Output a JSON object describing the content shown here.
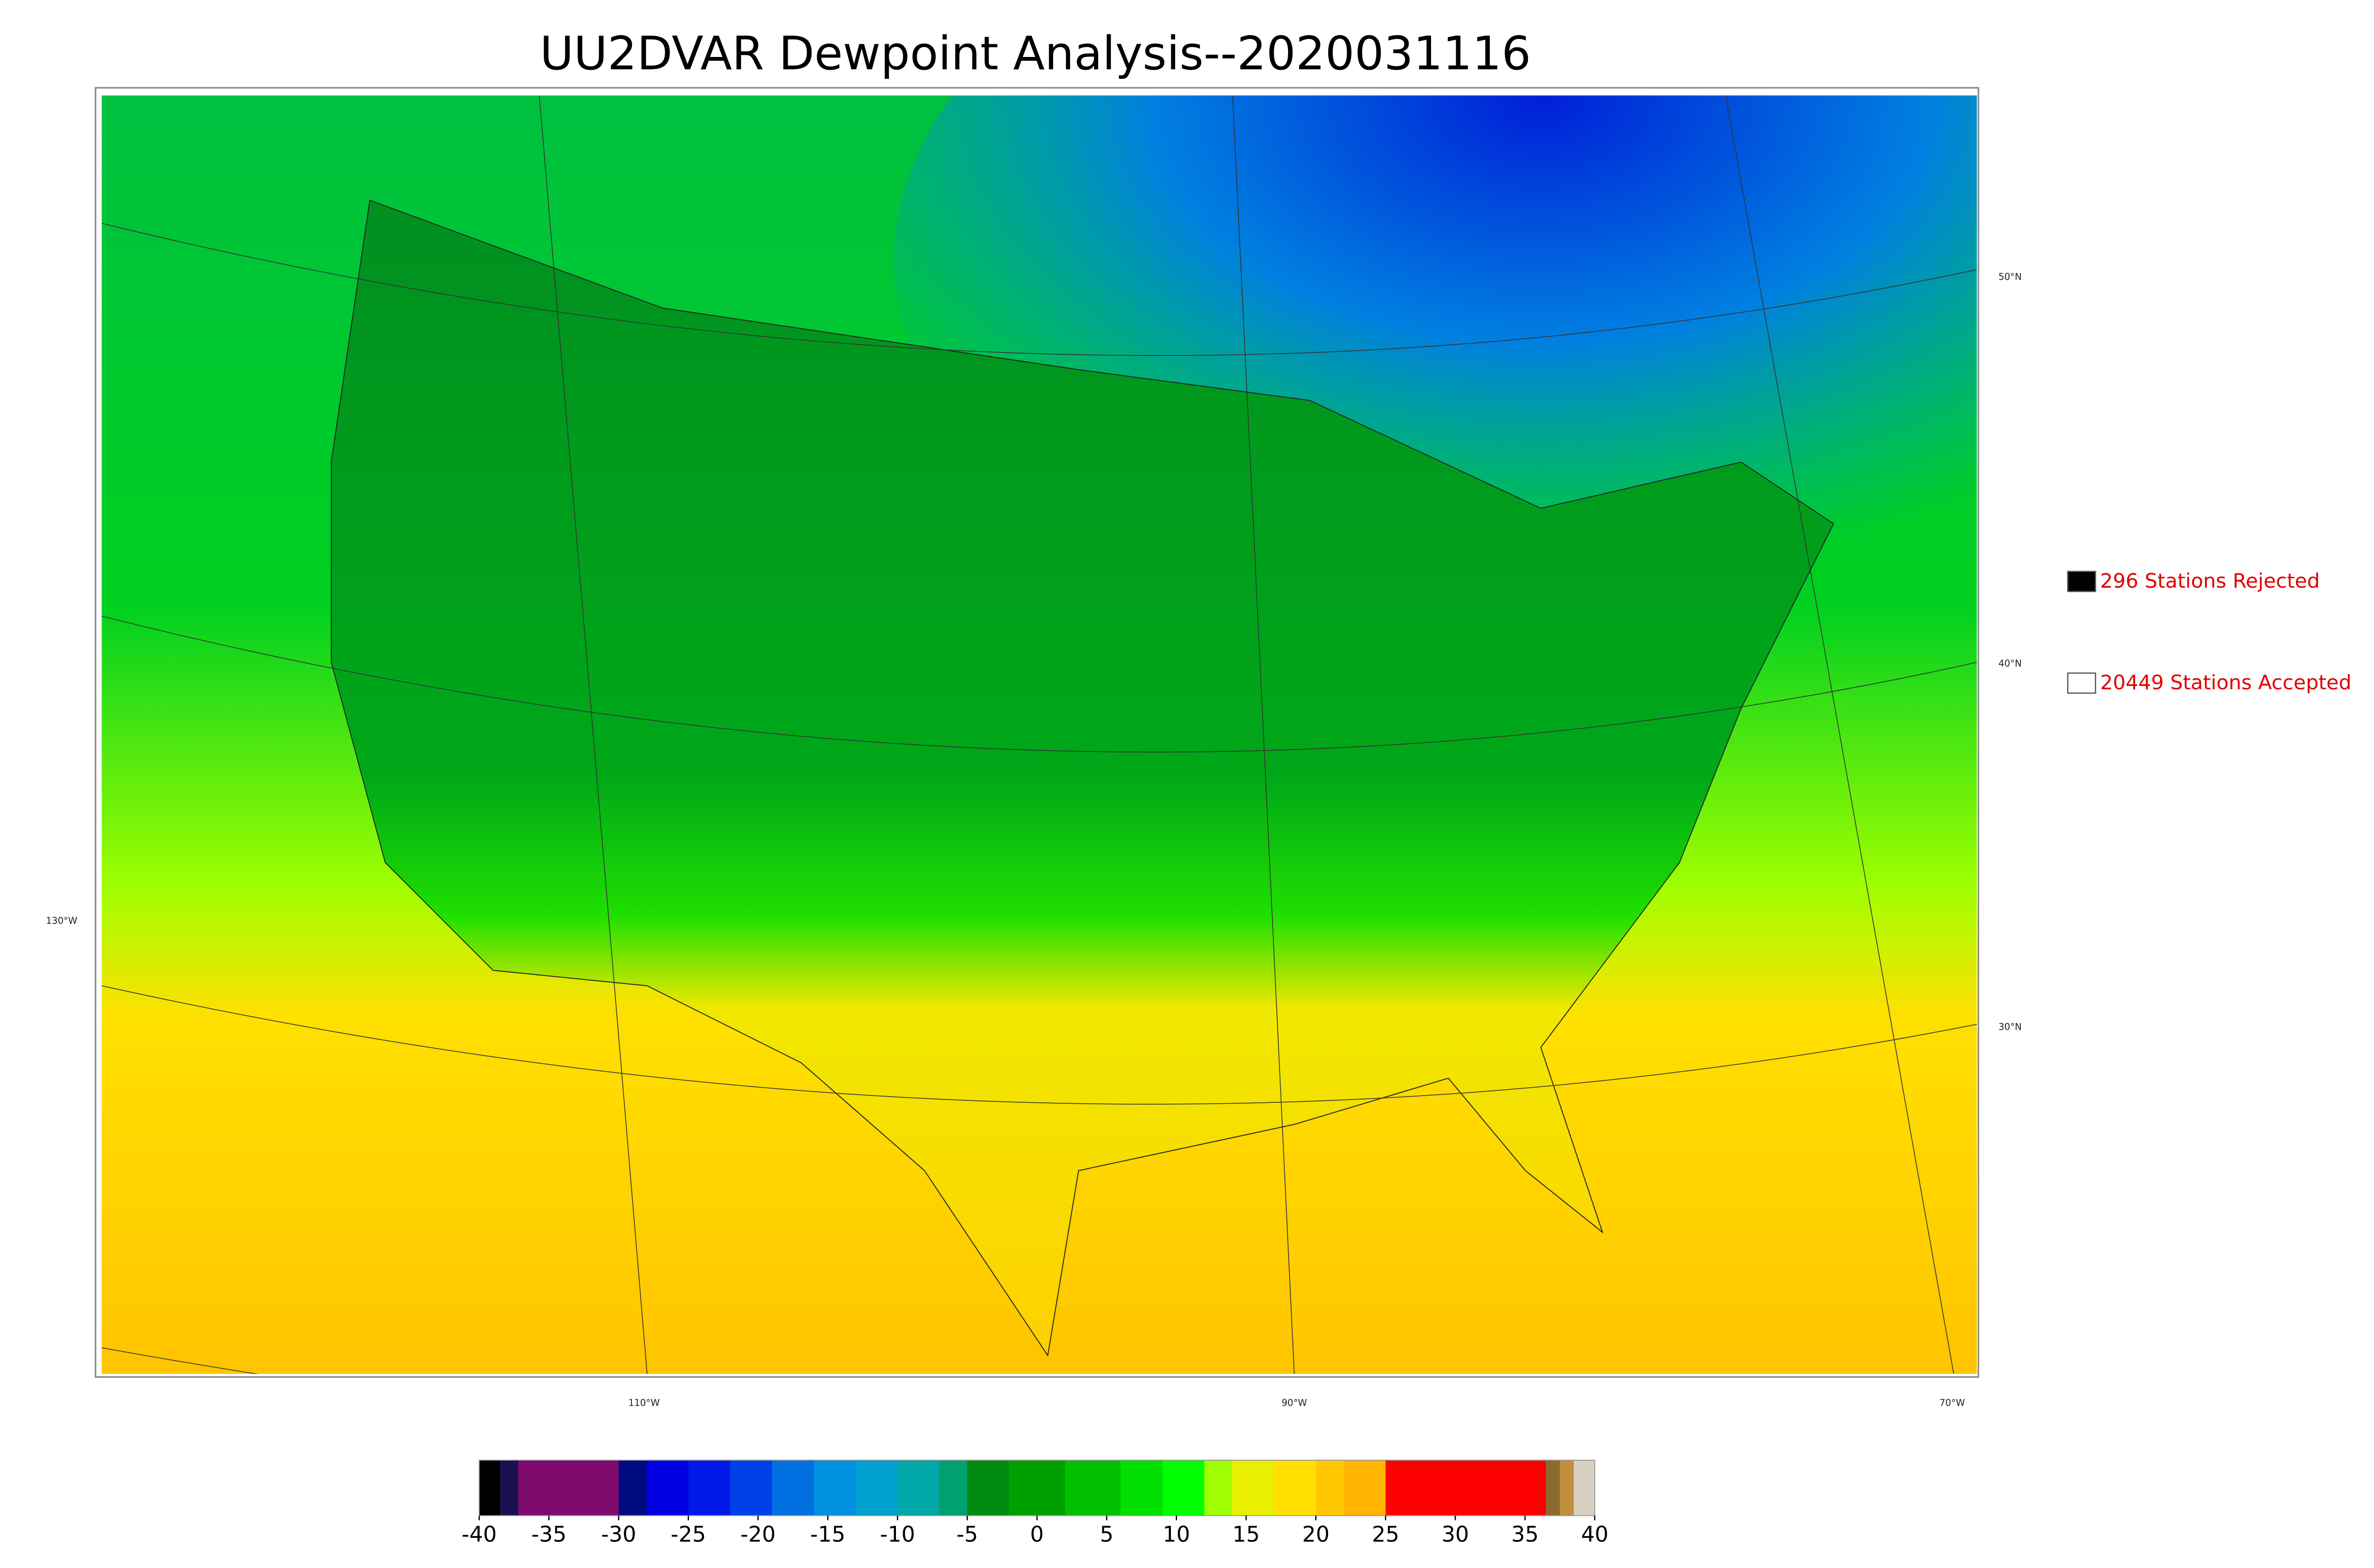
{
  "title": "UU2DVAR Dewpoint Analysis--2020031116",
  "legend": [
    {
      "label": "296 Stations Rejected",
      "color": "#000000"
    },
    {
      "label": "20449 Stations Accepted",
      "color": "#ffffff"
    }
  ],
  "lat_labels": [
    "50°N",
    "40°N",
    "30°N"
  ],
  "lon_labels": [
    "130°W",
    "110°W",
    "90°W",
    "70°W"
  ],
  "colorbar": {
    "range": [
      -40,
      40
    ],
    "ticks": [
      -40,
      -35,
      -30,
      -25,
      -20,
      -15,
      -10,
      -5,
      0,
      5,
      10,
      15,
      20,
      25,
      30,
      35,
      40
    ],
    "stops": [
      {
        "value": -40,
        "color": "#000000"
      },
      {
        "value": -38.5,
        "color": "#1a1050"
      },
      {
        "value": -37.2,
        "color": "#7e0a6e"
      },
      {
        "value": -30,
        "color": "#000a80"
      },
      {
        "value": -28,
        "color": "#0000e0"
      },
      {
        "value": -25,
        "color": "#0018e8"
      },
      {
        "value": -22,
        "color": "#0040e8"
      },
      {
        "value": -19,
        "color": "#0070e0"
      },
      {
        "value": -16,
        "color": "#0090e0"
      },
      {
        "value": -13,
        "color": "#00a0d0"
      },
      {
        "value": -10,
        "color": "#00a8a8"
      },
      {
        "value": -7,
        "color": "#00a070"
      },
      {
        "value": -5,
        "color": "#008c10"
      },
      {
        "value": -2,
        "color": "#00a000"
      },
      {
        "value": 2,
        "color": "#00c000"
      },
      {
        "value": 6,
        "color": "#00e000"
      },
      {
        "value": 9,
        "color": "#00ff00"
      },
      {
        "value": 12,
        "color": "#a0ff00"
      },
      {
        "value": 14,
        "color": "#e8f000"
      },
      {
        "value": 17,
        "color": "#ffe000"
      },
      {
        "value": 20,
        "color": "#ffc800"
      },
      {
        "value": 22,
        "color": "#ffb400"
      },
      {
        "value": 25,
        "color": "#ff0000"
      },
      {
        "value": 36.5,
        "color": "#8b6a30"
      },
      {
        "value": 37.5,
        "color": "#c09040"
      },
      {
        "value": 38.5,
        "color": "#d8d0c0"
      }
    ]
  }
}
